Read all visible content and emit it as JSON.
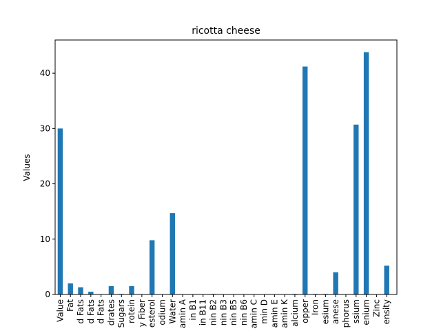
{
  "chart_data": {
    "type": "bar",
    "title": "ricotta cheese",
    "xlabel": "",
    "ylabel": "Values",
    "ylim": [
      0,
      46
    ],
    "yticks": [
      0,
      10,
      20,
      30,
      40
    ],
    "grid": false,
    "legend": "none",
    "bar_color": "#1f77b4",
    "categories": [
      "Value",
      "Fat",
      "d Fats",
      "d Fats",
      "d Fats",
      "drates",
      "Sugars",
      "rotein",
      "y Fiber",
      "esterol",
      "odium",
      "Water",
      "amin A",
      "in B1",
      "in B11",
      "nin B2",
      "nin B3",
      "nin B5",
      "nin B6",
      "amin C",
      "min D",
      "amin E",
      "amin K",
      "alcium",
      "opper",
      "Iron",
      "esium",
      "anese",
      "phorus",
      "ssium",
      "enium",
      "Zinc",
      "ensity"
    ],
    "values": [
      30.0,
      2.0,
      1.3,
      0.5,
      0.0,
      1.5,
      0.1,
      1.5,
      0.0,
      9.8,
      0.0,
      14.7,
      0.0,
      0.0,
      0.0,
      0.1,
      0.0,
      0.0,
      0.0,
      0.0,
      0.0,
      0.0,
      0.0,
      0.1,
      41.2,
      0.1,
      0.1,
      4.0,
      0.0,
      30.7,
      43.8,
      0.0,
      5.2
    ]
  }
}
